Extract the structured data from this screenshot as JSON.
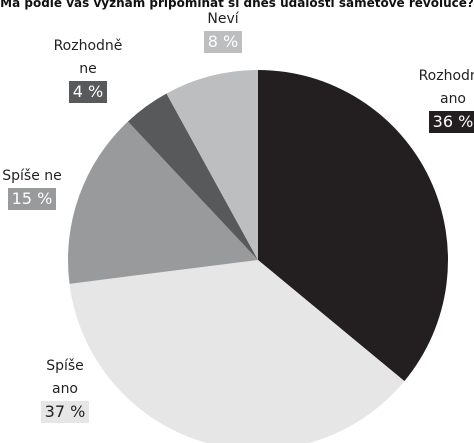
{
  "chart_data": {
    "type": "pie",
    "title": "Má podle vás význam připomínat si dnes události sametové revoluce?",
    "categories": [
      "Rozhodně ano",
      "Spíše ano",
      "Spíše ne",
      "Rozhodně ne",
      "Neví"
    ],
    "values": [
      36,
      37,
      15,
      4,
      8
    ],
    "value_labels": [
      "36 %",
      "37 %",
      "15 %",
      "4 %",
      "8 %"
    ],
    "colors": [
      "#231f20",
      "#e6e6e6",
      "#999a9c",
      "#58595b",
      "#bcbec0"
    ]
  }
}
